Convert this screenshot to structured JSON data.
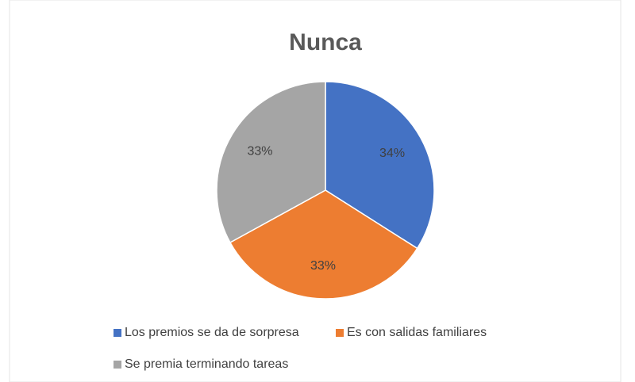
{
  "chart_data": {
    "type": "pie",
    "title": "Nunca",
    "categories": [
      "Los premios se da de sorpresa",
      "Es con salidas familiares",
      "Se premia terminando tareas"
    ],
    "values": [
      34,
      33,
      33
    ],
    "value_labels": [
      "34%",
      "33%",
      "33%"
    ],
    "colors": [
      "#4472c4",
      "#ed7d31",
      "#a5a5a5"
    ],
    "legend": "bottom"
  }
}
